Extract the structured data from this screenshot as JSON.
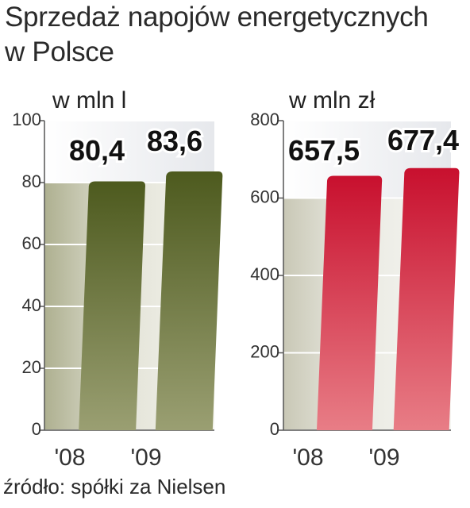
{
  "title_line1": "Sprzedaż napojów energetycznych",
  "title_line2": "w Polsce",
  "source": "źródło: spółki za Nielsen",
  "colors": {
    "left_bar_top": "#4d5a1e",
    "left_bar_bottom": "#9a9f72",
    "right_bar_top": "#c8102e",
    "right_bar_bottom": "#e87d86"
  },
  "chart_data": [
    {
      "type": "bar",
      "unit": "w mln l",
      "categories": [
        "'08",
        "'09"
      ],
      "values": [
        80.4,
        83.6
      ],
      "value_labels": [
        "80,4",
        "83,6"
      ],
      "ylim": [
        0,
        100
      ],
      "yticks": [
        "0",
        "20",
        "40",
        "60",
        "80",
        "100"
      ],
      "ytick_values": [
        0,
        20,
        40,
        60,
        80,
        100
      ],
      "grid": true
    },
    {
      "type": "bar",
      "unit": "w mln zł",
      "categories": [
        "'08",
        "'09"
      ],
      "values": [
        657.5,
        677.4
      ],
      "value_labels": [
        "657,5",
        "677,4"
      ],
      "ylim": [
        0,
        800
      ],
      "yticks": [
        "0",
        "200",
        "400",
        "600",
        "800"
      ],
      "ytick_values": [
        0,
        200,
        400,
        600,
        800
      ],
      "grid": true
    }
  ]
}
